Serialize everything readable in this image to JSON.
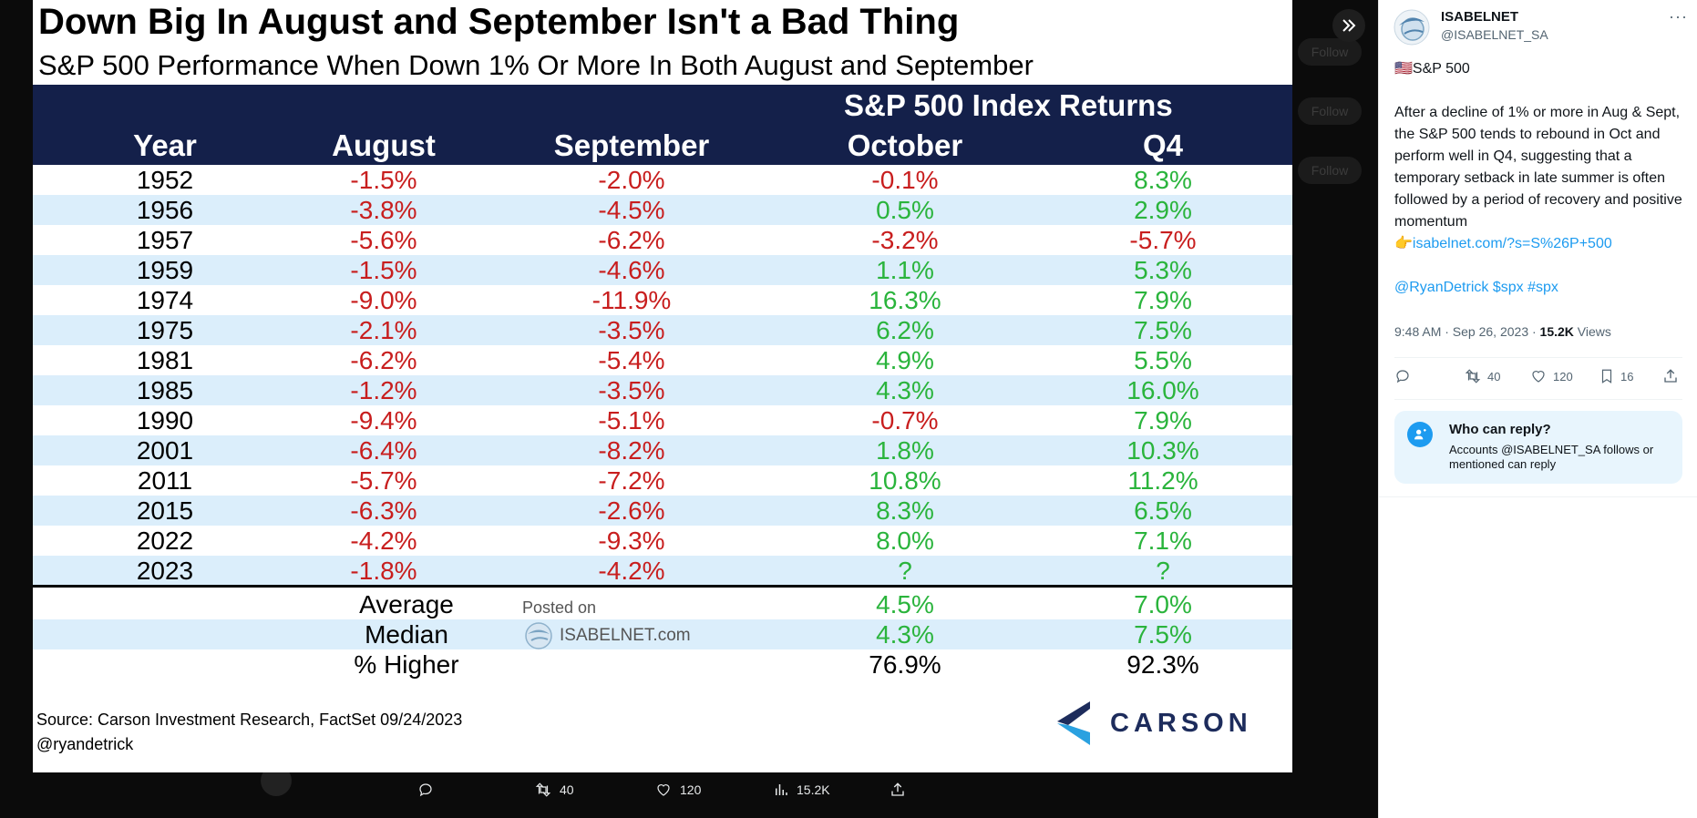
{
  "image": {
    "title": "Down Big In August and September Isn't a Bad Thing",
    "subtitle": "S&P 500 Performance When Down 1% Or More In Both August and September",
    "header_super": "S&P 500 Index Returns",
    "columns": [
      "Year",
      "August",
      "September",
      "October",
      "Q4"
    ],
    "rows": [
      {
        "year": "1952",
        "aug": "-1.5%",
        "sep": "-2.0%",
        "oct": "-0.1%",
        "q4": "8.3%",
        "oct_tone": "neg",
        "q4_tone": "pos"
      },
      {
        "year": "1956",
        "aug": "-3.8%",
        "sep": "-4.5%",
        "oct": "0.5%",
        "q4": "2.9%",
        "oct_tone": "pos",
        "q4_tone": "pos"
      },
      {
        "year": "1957",
        "aug": "-5.6%",
        "sep": "-6.2%",
        "oct": "-3.2%",
        "q4": "-5.7%",
        "oct_tone": "neg",
        "q4_tone": "neg"
      },
      {
        "year": "1959",
        "aug": "-1.5%",
        "sep": "-4.6%",
        "oct": "1.1%",
        "q4": "5.3%",
        "oct_tone": "pos",
        "q4_tone": "pos"
      },
      {
        "year": "1974",
        "aug": "-9.0%",
        "sep": "-11.9%",
        "oct": "16.3%",
        "q4": "7.9%",
        "oct_tone": "pos",
        "q4_tone": "pos"
      },
      {
        "year": "1975",
        "aug": "-2.1%",
        "sep": "-3.5%",
        "oct": "6.2%",
        "q4": "7.5%",
        "oct_tone": "pos",
        "q4_tone": "pos"
      },
      {
        "year": "1981",
        "aug": "-6.2%",
        "sep": "-5.4%",
        "oct": "4.9%",
        "q4": "5.5%",
        "oct_tone": "pos",
        "q4_tone": "pos"
      },
      {
        "year": "1985",
        "aug": "-1.2%",
        "sep": "-3.5%",
        "oct": "4.3%",
        "q4": "16.0%",
        "oct_tone": "pos",
        "q4_tone": "pos"
      },
      {
        "year": "1990",
        "aug": "-9.4%",
        "sep": "-5.1%",
        "oct": "-0.7%",
        "q4": "7.9%",
        "oct_tone": "neg",
        "q4_tone": "pos"
      },
      {
        "year": "2001",
        "aug": "-6.4%",
        "sep": "-8.2%",
        "oct": "1.8%",
        "q4": "10.3%",
        "oct_tone": "pos",
        "q4_tone": "pos"
      },
      {
        "year": "2011",
        "aug": "-5.7%",
        "sep": "-7.2%",
        "oct": "10.8%",
        "q4": "11.2%",
        "oct_tone": "pos",
        "q4_tone": "pos"
      },
      {
        "year": "2015",
        "aug": "-6.3%",
        "sep": "-2.6%",
        "oct": "8.3%",
        "q4": "6.5%",
        "oct_tone": "pos",
        "q4_tone": "pos"
      },
      {
        "year": "2022",
        "aug": "-4.2%",
        "sep": "-9.3%",
        "oct": "8.0%",
        "q4": "7.1%",
        "oct_tone": "pos",
        "q4_tone": "pos"
      },
      {
        "year": "2023",
        "aug": "-1.8%",
        "sep": "-4.2%",
        "oct": "?",
        "q4": "?",
        "oct_tone": "pos",
        "q4_tone": "pos"
      }
    ],
    "summary": [
      {
        "label": "Average",
        "oct": "4.5%",
        "q4": "7.0%",
        "tone": "pos"
      },
      {
        "label": "Median",
        "oct": "4.3%",
        "q4": "7.5%",
        "tone": "pos"
      },
      {
        "label": "% Higher",
        "oct": "76.9%",
        "q4": "92.3%",
        "tone": "neu"
      }
    ],
    "watermark_posted": "Posted on",
    "watermark_site": "ISABELNET.com",
    "source": "Source: Carson Investment Research, FactSet 09/24/2023",
    "credit": "@ryandetrick",
    "brand": "CARSON"
  },
  "viewer": {
    "actions": [
      {
        "icon": "reply-icon",
        "count": ""
      },
      {
        "icon": "retweet-icon",
        "count": "40"
      },
      {
        "icon": "like-icon",
        "count": "120"
      },
      {
        "icon": "views-icon",
        "count": "15.2K"
      },
      {
        "icon": "share-icon",
        "count": ""
      }
    ],
    "ghost_follow": "Follow"
  },
  "post": {
    "name": "ISABELNET",
    "handle": "@ISABELNET_SA",
    "flag": "🇺🇸",
    "heading": "S&P 500",
    "body": "After a decline of 1% or more in Aug & Sept, the S&P 500 tends to rebound in Oct and perform well in Q4, suggesting that a temporary setback in late summer is often followed by a period of recovery and positive momentum",
    "pointer": "👉",
    "link": "isabelnet.com/?s=S%26P+500",
    "tags": "@RyanDetrick $spx #spx",
    "time": "9:48 AM · Sep 26, 2023 · ",
    "views_count": "15.2K",
    "views_label": " Views",
    "retweets": "40",
    "likes": "120",
    "bookmarks": "16",
    "reply_title": "Who can reply?",
    "reply_desc": "Accounts @ISABELNET_SA follows or mentioned can reply"
  },
  "colors": {
    "navy": "#14204a",
    "stripe": "#dbeefb",
    "neg": "#c81e1e",
    "pos": "#2ab43c",
    "link": "#1d9bf0"
  }
}
